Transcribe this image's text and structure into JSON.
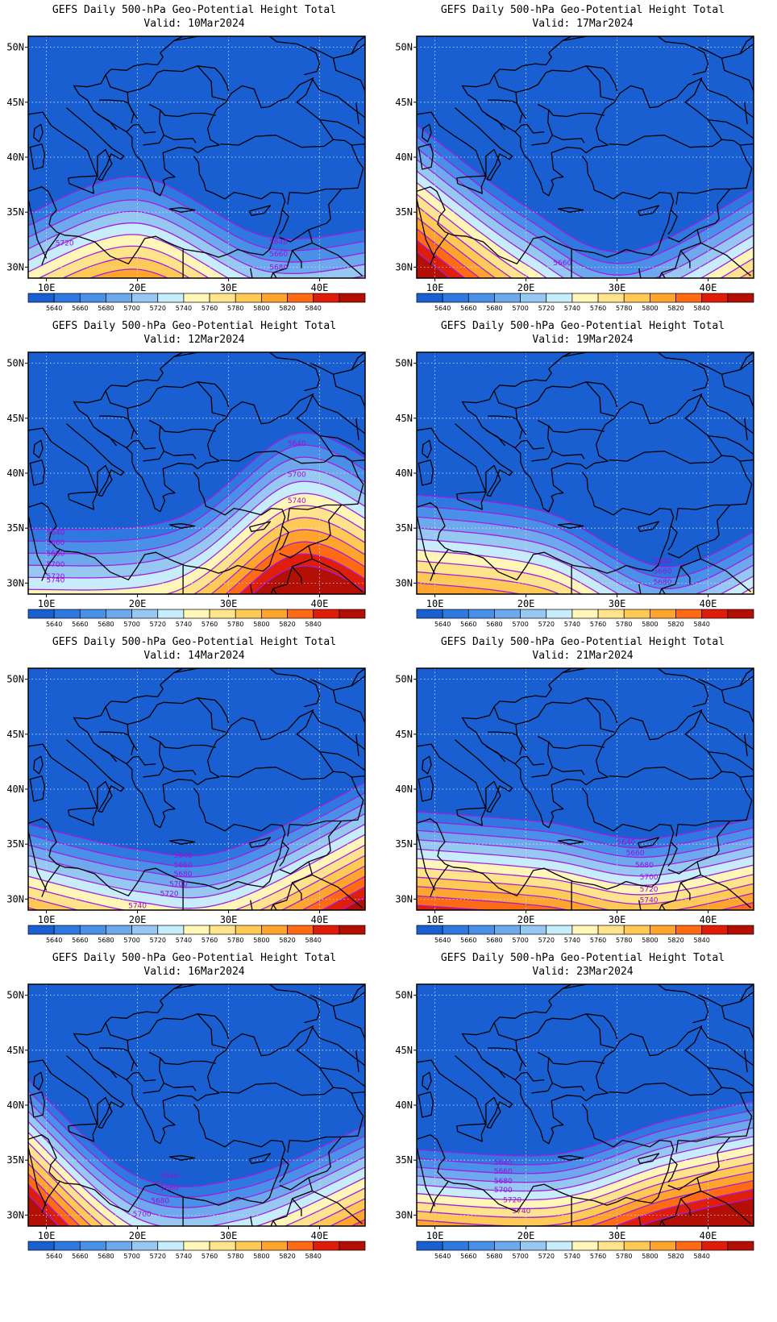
{
  "figure": {
    "title_prefix": "GEFS Daily 500-hPa Geo-Potential Height Total",
    "lat_labels": [
      "50N",
      "45N",
      "40N",
      "35N",
      "30N"
    ],
    "lon_labels": [
      "10E",
      "20E",
      "30E",
      "40E"
    ],
    "colorbar": {
      "levels": [
        "5640",
        "5660",
        "5680",
        "5700",
        "5720",
        "5740",
        "5760",
        "5780",
        "5800",
        "5820",
        "5840"
      ],
      "colors": [
        "#1a5fd2",
        "#2f78e0",
        "#4a90e8",
        "#6ea9ee",
        "#97c8f2",
        "#c7ecfb",
        "#fff6b8",
        "#ffe48c",
        "#ffc956",
        "#ffa52e",
        "#ff6a14",
        "#e01c0a",
        "#b40f05"
      ]
    }
  },
  "panels": [
    {
      "title": "GEFS Daily 500-hPa Geo-Potential Height Total",
      "valid": "Valid: 10Mar2024",
      "contour_labels": [
        "5720",
        "5640",
        "5660",
        "5680"
      ]
    },
    {
      "title": "GEFS Daily 500-hPa Geo-Potential Height Total",
      "valid": "Valid: 17Mar2024",
      "contour_labels": [
        "5660"
      ]
    },
    {
      "title": "GEFS Daily 500-hPa Geo-Potential Height Total",
      "valid": "Valid: 12Mar2024",
      "contour_labels": [
        "5640",
        "5700",
        "5740",
        "5640",
        "5660",
        "5680",
        "5700",
        "5720",
        "5740"
      ]
    },
    {
      "title": "GEFS Daily 500-hPa Geo-Potential Height Total",
      "valid": "Valid: 19Mar2024",
      "contour_labels": [
        "5640",
        "5660",
        "5680"
      ]
    },
    {
      "title": "GEFS Daily 500-hPa Geo-Potential Height Total",
      "valid": "Valid: 14Mar2024",
      "contour_labels": [
        "5640",
        "5660",
        "5680",
        "5700",
        "5720",
        "5740"
      ]
    },
    {
      "title": "GEFS Daily 500-hPa Geo-Potential Height Total",
      "valid": "Valid: 21Mar2024",
      "contour_labels": [
        "5640",
        "5660",
        "5680",
        "5700",
        "5720",
        "5740"
      ]
    },
    {
      "title": "GEFS Daily 500-hPa Geo-Potential Height Total",
      "valid": "Valid: 16Mar2024",
      "contour_labels": [
        "5640",
        "5660",
        "5680",
        "5700"
      ]
    },
    {
      "title": "GEFS Daily 500-hPa Geo-Potential Height Total",
      "valid": "Valid: 23Mar2024",
      "contour_labels": [
        "5640",
        "5660",
        "5680",
        "5700",
        "5720",
        "5740"
      ]
    }
  ]
}
